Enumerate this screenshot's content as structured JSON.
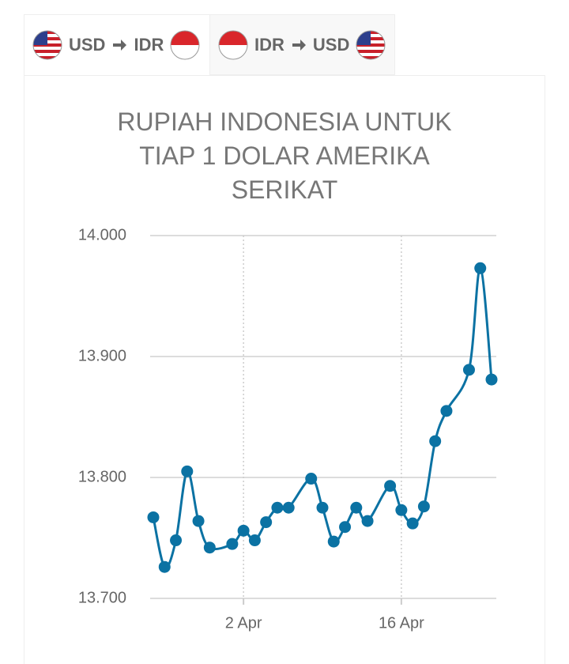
{
  "tabs": [
    {
      "from": "USD",
      "to": "IDR"
    },
    {
      "from": "IDR",
      "to": "USD"
    }
  ],
  "chart_data": {
    "type": "line",
    "title": "RUPIAH INDONESIA UNTUK TIAP 1 DOLAR AMERIKA SERIKAT",
    "x": [
      "25 Mar",
      "26 Mar",
      "27 Mar",
      "28 Mar",
      "29 Mar",
      "30 Mar",
      "1 Apr",
      "2 Apr",
      "3 Apr",
      "4 Apr",
      "5 Apr",
      "6 Apr",
      "8 Apr",
      "9 Apr",
      "10 Apr",
      "11 Apr",
      "12 Apr",
      "13 Apr",
      "15 Apr",
      "16 Apr",
      "17 Apr",
      "18 Apr",
      "19 Apr",
      "20 Apr",
      "22 Apr",
      "23 Apr",
      "24 Apr"
    ],
    "series": [
      {
        "name": "IDR",
        "color": "#0b72a3",
        "values": [
          13.767,
          13.726,
          13.748,
          13.805,
          13.764,
          13.742,
          13.745,
          13.756,
          13.748,
          13.763,
          13.775,
          13.775,
          13.799,
          13.775,
          13.747,
          13.759,
          13.775,
          13.764,
          13.793,
          13.773,
          13.762,
          13.776,
          13.83,
          13.855,
          13.889,
          13.973,
          13.881
        ]
      }
    ],
    "xlim": [
      "25 Mar",
      "24 Apr"
    ],
    "xticks": [
      "2 Apr",
      "16 Apr"
    ],
    "ylim": [
      13.7,
      14.0
    ],
    "yticks": [
      {
        "value": 13.7,
        "label": "13.700"
      },
      {
        "value": 13.8,
        "label": "13.800"
      },
      {
        "value": 13.9,
        "label": "13.900"
      },
      {
        "value": 14.0,
        "label": "14.000"
      }
    ],
    "grid": true
  }
}
